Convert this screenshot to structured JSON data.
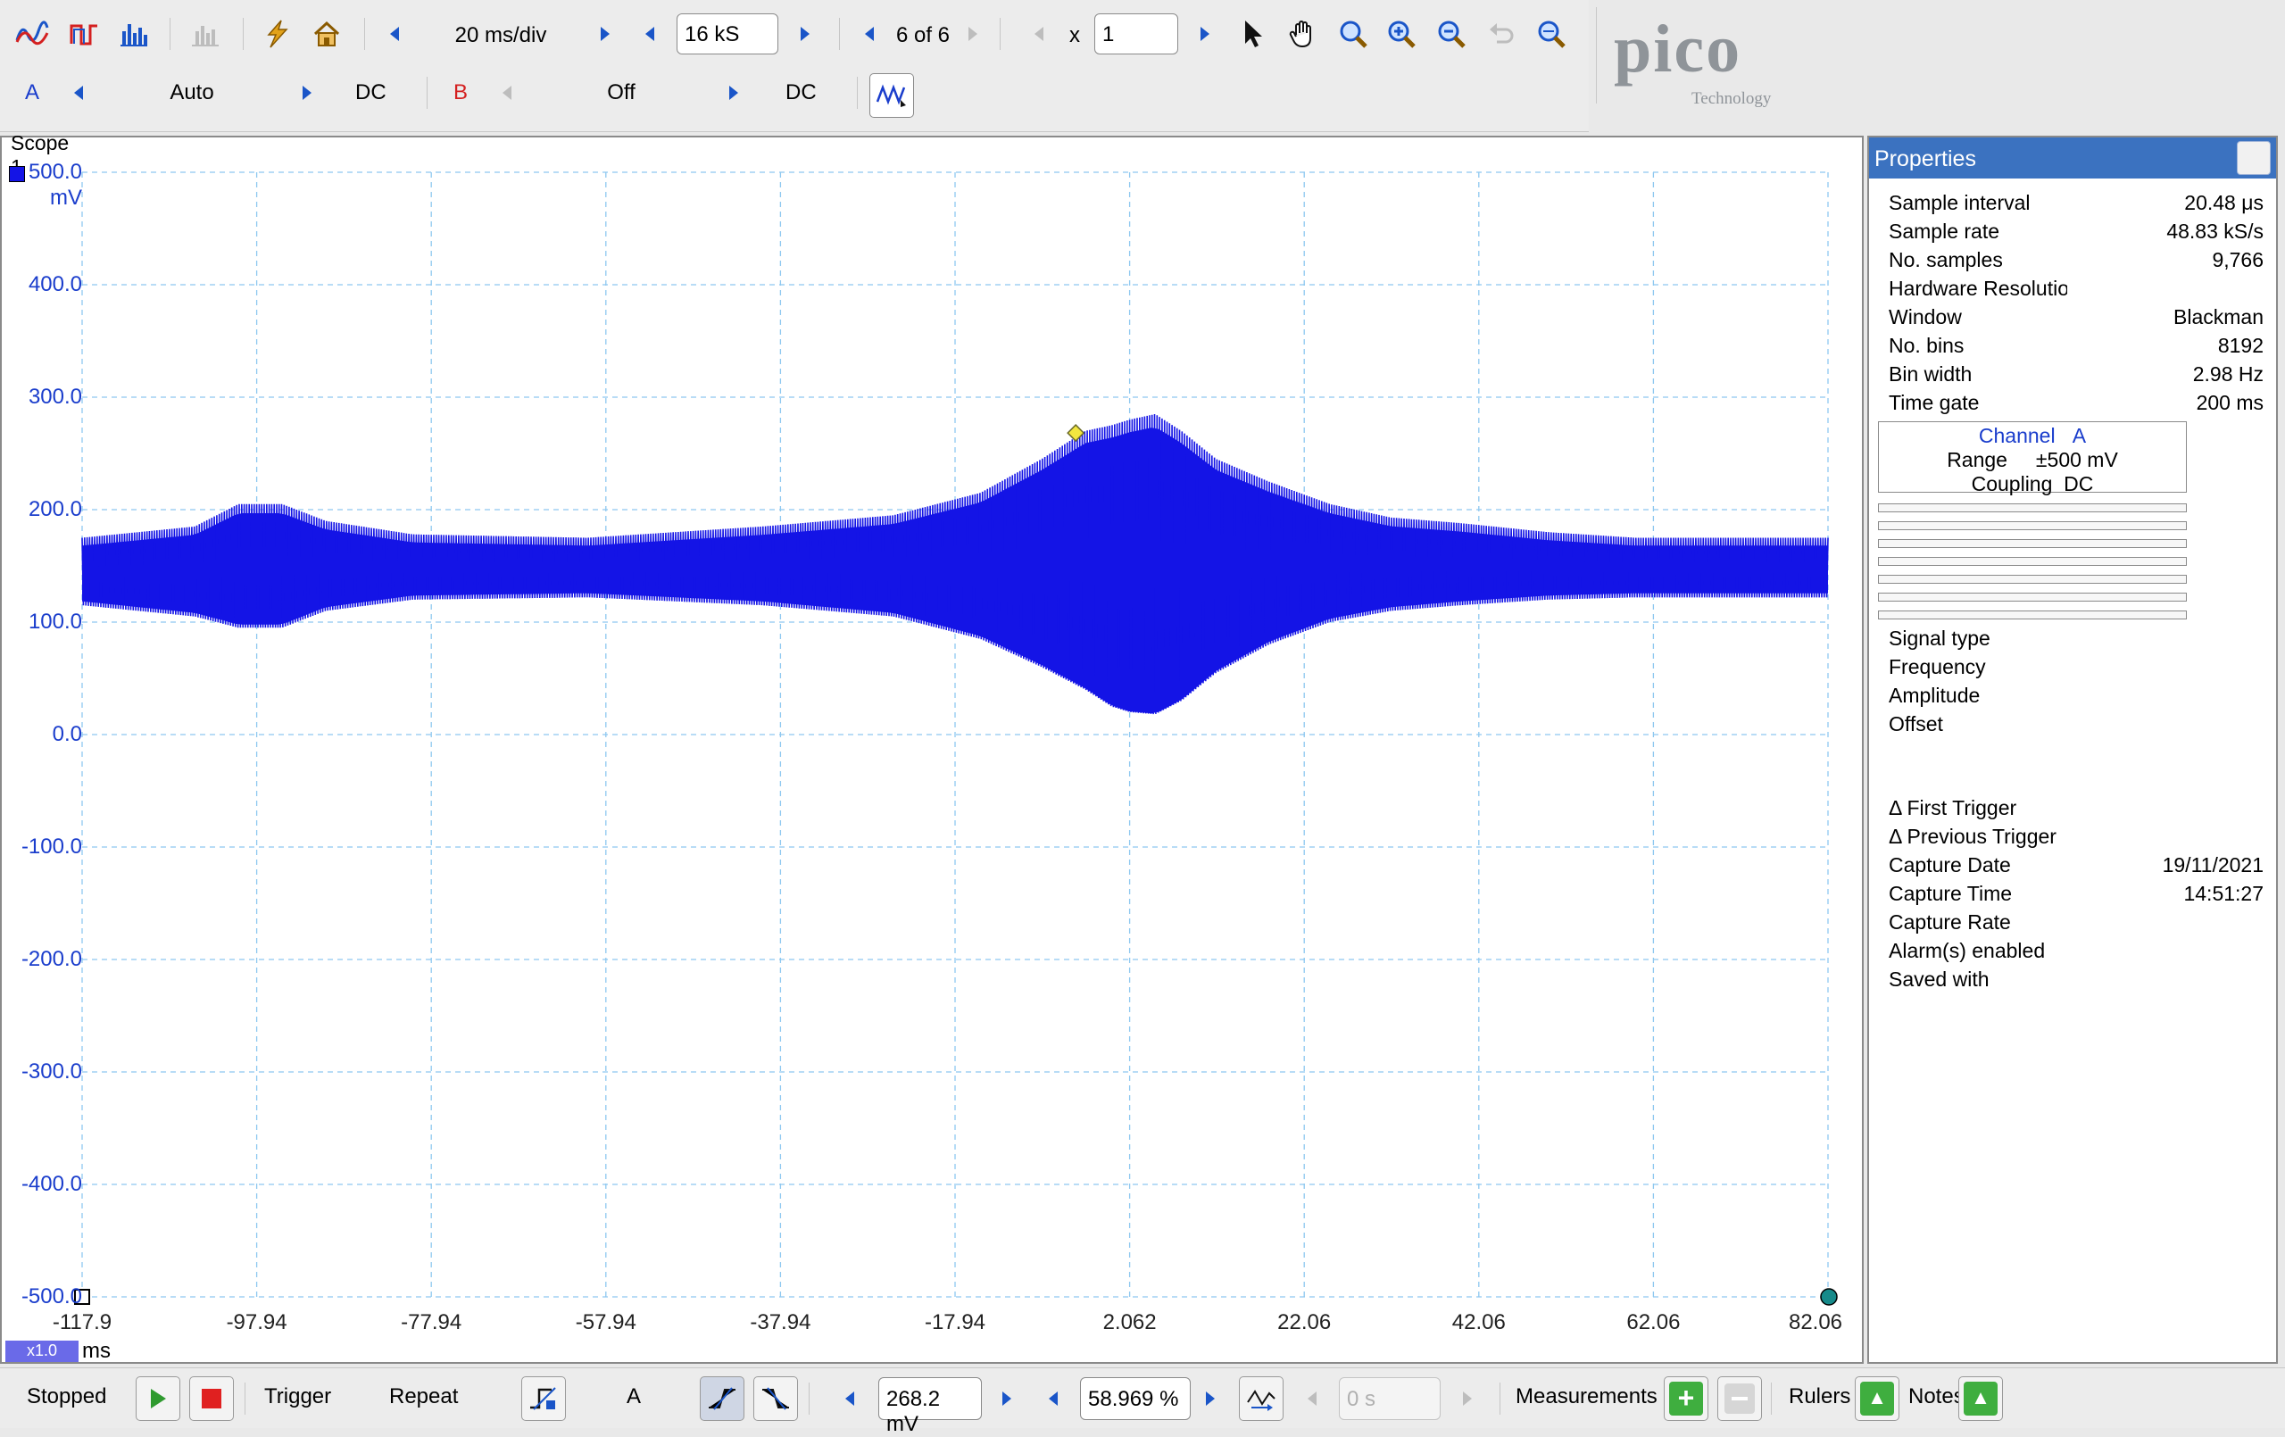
{
  "toolbar": {
    "timebase": "20 ms/div",
    "samples": "16 kS",
    "capture": "6 of 6",
    "zoom_prefix": "x",
    "zoom_value": "1",
    "channel_a": {
      "label": "A",
      "range": "Auto",
      "coupling": "DC",
      "color": "#1a3dcc"
    },
    "channel_b": {
      "label": "B",
      "range": "Off",
      "coupling": "DC",
      "color": "#d42020"
    }
  },
  "logo": {
    "word": "pico",
    "sub": "Technology"
  },
  "scope": {
    "tab_label": "Scope 1",
    "y_unit": "mV",
    "x_unit": "ms",
    "x_scale_badge": "x1.0",
    "y_ticks": [
      "500.0",
      "400.0",
      "300.0",
      "200.0",
      "100.0",
      "0.0",
      "-100.0",
      "-200.0",
      "-300.0",
      "-400.0",
      "-500.0"
    ],
    "x_ticks": [
      "-117.9",
      "-97.94",
      "-77.94",
      "-57.94",
      "-37.94",
      "-17.94",
      "2.062",
      "22.06",
      "42.06",
      "62.06",
      "82.06"
    ]
  },
  "chart_data": {
    "type": "line",
    "xlabel": "ms",
    "ylabel": "mV",
    "xlim": [
      -117.9,
      82.06
    ],
    "ylim": [
      -500,
      500
    ],
    "grid": true,
    "series": [
      {
        "color": "#1414e6",
        "envelope_x": [
          -117.9,
          -105,
          -100,
          -95,
          -90,
          -80,
          -60,
          -40,
          -25,
          -15,
          -8,
          -3,
          0,
          2.062,
          5,
          8,
          12,
          18,
          25,
          32,
          40,
          50,
          60,
          70,
          82.06
        ],
        "envelope_upper": [
          175,
          185,
          205,
          205,
          190,
          178,
          175,
          185,
          195,
          215,
          245,
          270,
          275,
          280,
          285,
          270,
          245,
          225,
          205,
          193,
          188,
          180,
          175,
          175,
          175
        ],
        "envelope_lower": [
          115,
          105,
          95,
          95,
          110,
          120,
          122,
          115,
          105,
          85,
          60,
          40,
          25,
          20,
          18,
          30,
          55,
          80,
          100,
          110,
          115,
          120,
          122,
          122,
          122
        ]
      }
    ]
  },
  "properties": {
    "title": "Properties",
    "rows": [
      {
        "k": "Sample interval",
        "v": "20.48 μs"
      },
      {
        "k": "Sample rate",
        "v": "48.83 kS/s"
      },
      {
        "k": "No. samples",
        "v": "9,766"
      },
      {
        "k": "Hardware Resolution",
        "v": ""
      },
      {
        "k": "Window",
        "v": "Blackman"
      },
      {
        "k": "No. bins",
        "v": "8192"
      },
      {
        "k": "Bin width",
        "v": "2.98 Hz"
      },
      {
        "k": "Time gate",
        "v": "200 ms"
      }
    ],
    "channel_box": {
      "title": "Channel",
      "channel": "A",
      "range_label": "Range",
      "range": "±500 mV",
      "coupling_label": "Coupling",
      "coupling": "DC"
    },
    "signal_rows": [
      "Signal type",
      "Frequency",
      "Amplitude",
      "Offset"
    ],
    "info_rows": [
      {
        "k": "Δ First Trigger",
        "v": ""
      },
      {
        "k": "Δ Previous Trigger",
        "v": ""
      },
      {
        "k": "Capture Date",
        "v": "19/11/2021"
      },
      {
        "k": "Capture Time",
        "v": "14:51:27"
      },
      {
        "k": "Capture Rate",
        "v": ""
      },
      {
        "k": "Alarm(s) enabled",
        "v": ""
      },
      {
        "k": "Saved with",
        "v": ""
      }
    ]
  },
  "statusbar": {
    "state": "Stopped",
    "trigger_label": "Trigger",
    "trigger_mode": "Repeat",
    "trigger_channel": "A",
    "threshold": "268.2 mV",
    "pre_trigger": "58.969 %",
    "delay": "0 s",
    "measurements_label": "Measurements",
    "rulers_label": "Rulers",
    "notes_label": "Notes"
  }
}
